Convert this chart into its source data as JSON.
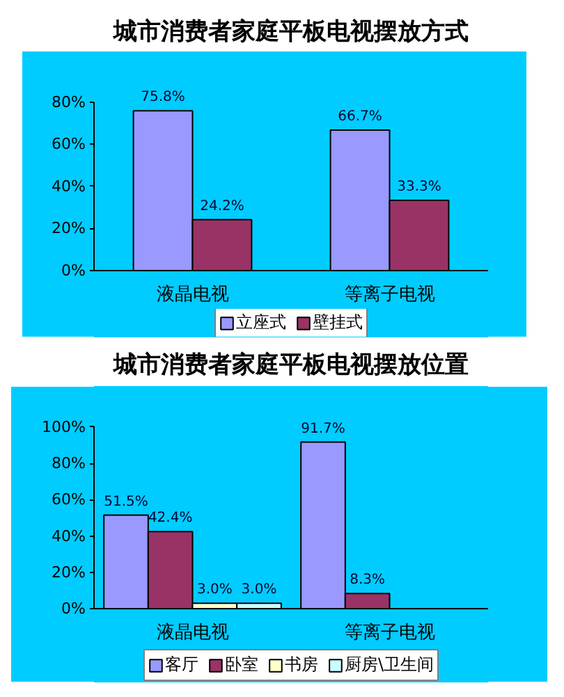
{
  "chart_data": [
    {
      "type": "bar",
      "title": "城市消费者家庭平板电视摆放方式",
      "categories": [
        "液晶电视",
        "等离子电视"
      ],
      "series": [
        {
          "name": "立座式",
          "color": "#9999ff",
          "values": [
            75.8,
            66.7
          ],
          "value_labels": [
            "75.8%",
            "66.7%"
          ]
        },
        {
          "name": "壁挂式",
          "color": "#993366",
          "values": [
            24.2,
            33.3
          ],
          "value_labels": [
            "24.2%",
            "33.3%"
          ]
        }
      ],
      "ylim": [
        0,
        80
      ],
      "yticks": [
        {
          "value": 0,
          "label": "0%"
        },
        {
          "value": 20,
          "label": "20%"
        },
        {
          "value": 40,
          "label": "40%"
        },
        {
          "value": 60,
          "label": "60%"
        },
        {
          "value": 80,
          "label": "80%"
        }
      ],
      "legend": "bottom"
    },
    {
      "type": "bar",
      "title": "城市消费者家庭平板电视摆放位置",
      "categories": [
        "液晶电视",
        "等离子电视"
      ],
      "series": [
        {
          "name": "客厅",
          "color": "#9999ff",
          "values": [
            51.5,
            91.7
          ],
          "value_labels": [
            "51.5%",
            "91.7%"
          ]
        },
        {
          "name": "卧室",
          "color": "#993366",
          "values": [
            42.4,
            8.3
          ],
          "value_labels": [
            "42.4%",
            "8.3%"
          ]
        },
        {
          "name": "书房",
          "color": "#ffffcc",
          "values": [
            3.0,
            null
          ],
          "value_labels": [
            "3.0%",
            null
          ]
        },
        {
          "name": "厨房\\卫生间",
          "color": "#ccffff",
          "values": [
            3.0,
            null
          ],
          "value_labels": [
            "3.0%",
            null
          ]
        }
      ],
      "ylim": [
        0,
        100
      ],
      "yticks": [
        {
          "value": 0,
          "label": "0%"
        },
        {
          "value": 20,
          "label": "20%"
        },
        {
          "value": 40,
          "label": "40%"
        },
        {
          "value": 60,
          "label": "60%"
        },
        {
          "value": 80,
          "label": "80%"
        },
        {
          "value": 100,
          "label": "100%"
        }
      ],
      "legend": "bottom"
    }
  ]
}
